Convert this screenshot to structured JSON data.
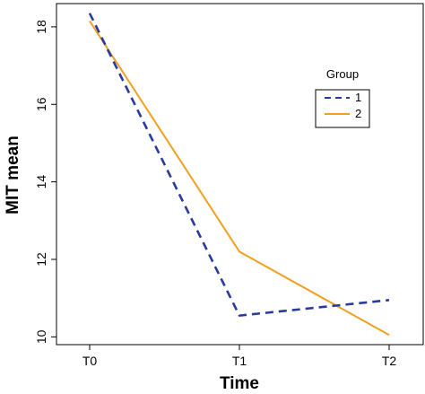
{
  "chart_data": {
    "type": "line",
    "title": "",
    "xlabel": "Time",
    "ylabel": "MIT mean",
    "categories": [
      "T0",
      "T1",
      "T2"
    ],
    "ylim": [
      9.8,
      18.6
    ],
    "yticks": [
      10,
      12,
      14,
      16,
      18
    ],
    "grid": false,
    "legend": {
      "title": "Group",
      "placement": "top-right",
      "entries": [
        "1",
        "2"
      ]
    },
    "series": [
      {
        "name": "1",
        "values": [
          18.35,
          10.55,
          10.95
        ],
        "color": "#2b3a9f",
        "dash": "dashed"
      },
      {
        "name": "2",
        "values": [
          18.15,
          12.2,
          10.05
        ],
        "color": "#f0a020",
        "dash": "solid"
      }
    ]
  }
}
